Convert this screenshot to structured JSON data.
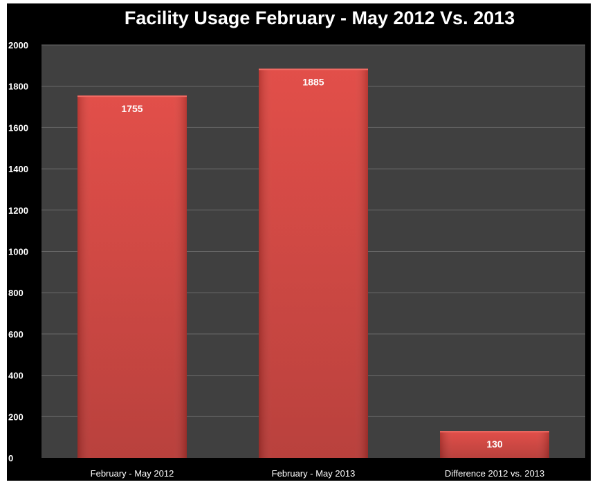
{
  "chart_data": {
    "type": "bar",
    "title": "Facility Usage February - May 2012 Vs. 2013",
    "categories": [
      "February - May 2012",
      "February - May 2013",
      "Difference 2012 vs. 2013"
    ],
    "values": [
      1755,
      1885,
      130
    ],
    "data_labels": [
      "1755",
      "1885",
      "130"
    ],
    "ylim": [
      0,
      2000
    ],
    "yticks": [
      0,
      200,
      400,
      600,
      800,
      1000,
      1200,
      1400,
      1600,
      1800,
      2000
    ],
    "xlabel": "",
    "ylabel": "",
    "grid": true,
    "legend": "none",
    "colors": {
      "bar": "#d9403b",
      "plot_background": "#404040",
      "chart_background": "#000000",
      "gridline": "#6a6a6a",
      "text": "#ffffff"
    }
  }
}
